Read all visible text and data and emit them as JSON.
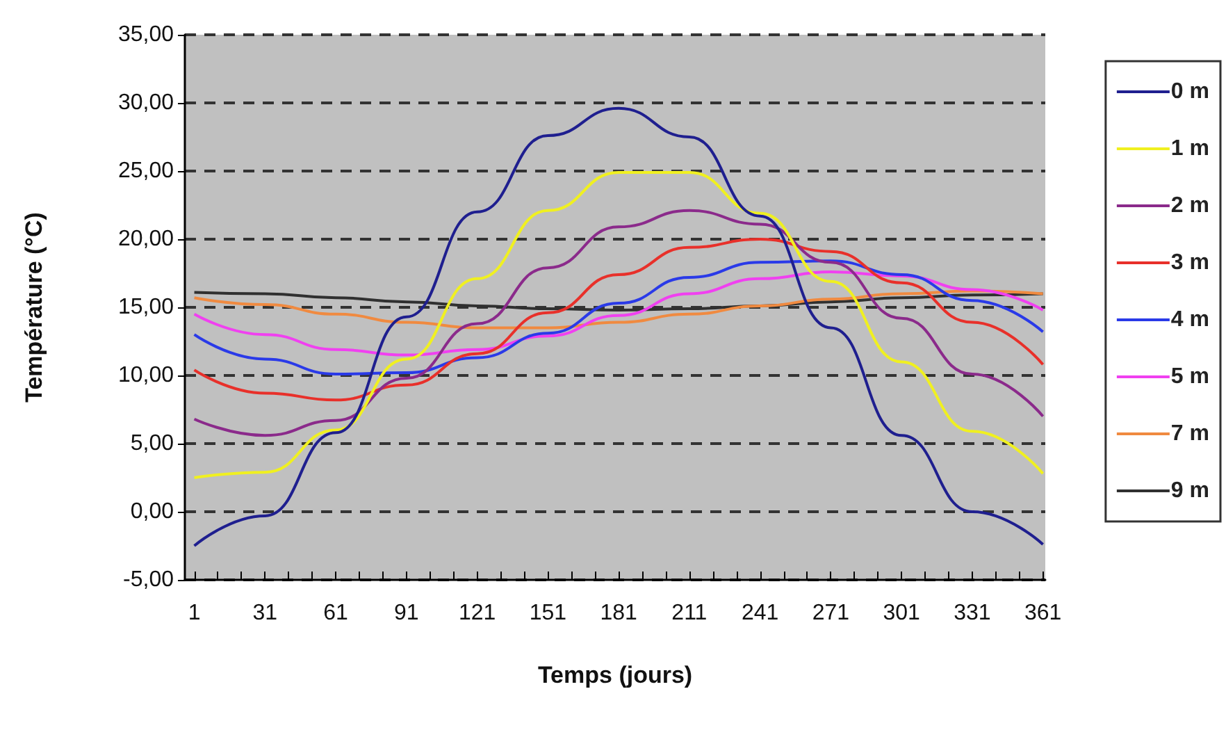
{
  "chart_data": {
    "type": "line",
    "xlabel": "Temps (jours)",
    "ylabel": "Température (°C)",
    "x": [
      1,
      31,
      61,
      91,
      121,
      151,
      181,
      211,
      241,
      271,
      301,
      331,
      361
    ],
    "series": [
      {
        "name": "0 m",
        "color": "#1f1f8f",
        "values": [
          -2.5,
          -0.3,
          5.8,
          14.3,
          22.0,
          27.6,
          29.6,
          27.5,
          21.7,
          13.5,
          5.6,
          0.0,
          -2.4
        ]
      },
      {
        "name": "1 m",
        "color": "#f0f020",
        "values": [
          2.5,
          2.9,
          6.0,
          11.2,
          17.1,
          22.1,
          24.9,
          24.9,
          21.9,
          16.9,
          11.0,
          5.9,
          2.8
        ]
      },
      {
        "name": "2 m",
        "color": "#8b2a8b",
        "values": [
          6.8,
          5.6,
          6.7,
          9.8,
          13.8,
          17.9,
          20.9,
          22.1,
          21.1,
          18.3,
          14.2,
          10.1,
          7.0
        ]
      },
      {
        "name": "3 m",
        "color": "#e8302a",
        "values": [
          10.4,
          8.7,
          8.2,
          9.3,
          11.6,
          14.6,
          17.4,
          19.4,
          20.0,
          19.1,
          16.8,
          13.9,
          10.8
        ]
      },
      {
        "name": "4 m",
        "color": "#2a3ae8",
        "values": [
          13.0,
          11.2,
          10.1,
          10.2,
          11.3,
          13.1,
          15.3,
          17.2,
          18.3,
          18.4,
          17.4,
          15.5,
          13.2
        ]
      },
      {
        "name": "5 m",
        "color": "#f040f0",
        "values": [
          14.5,
          13.0,
          11.9,
          11.5,
          11.9,
          12.9,
          14.4,
          16.0,
          17.1,
          17.6,
          17.3,
          16.3,
          14.8
        ]
      },
      {
        "name": "7 m",
        "color": "#f08a40",
        "values": [
          15.7,
          15.2,
          14.5,
          13.9,
          13.5,
          13.5,
          13.9,
          14.5,
          15.1,
          15.6,
          16.0,
          16.2,
          16.0
        ]
      },
      {
        "name": "9 m",
        "color": "#303030",
        "values": [
          16.1,
          16.0,
          15.7,
          15.4,
          15.1,
          14.9,
          14.8,
          14.9,
          15.1,
          15.4,
          15.7,
          15.9,
          16.0
        ]
      }
    ],
    "xlim": [
      -3,
      362
    ],
    "xticks": [
      1,
      {
        "value": 11,
        "label": null
      },
      {
        "value": 21,
        "label": null
      },
      31,
      {
        "value": 41,
        "label": null
      },
      {
        "value": 51,
        "label": null
      },
      61,
      {
        "value": 71,
        "label": null
      },
      {
        "value": 81,
        "label": null
      },
      91,
      {
        "value": 101,
        "label": null
      },
      {
        "value": 111,
        "label": null
      },
      121,
      {
        "value": 131,
        "label": null
      },
      {
        "value": 141,
        "label": null
      },
      151,
      {
        "value": 161,
        "label": null
      },
      {
        "value": 171,
        "label": null
      },
      181,
      {
        "value": 191,
        "label": null
      },
      {
        "value": 201,
        "label": null
      },
      211,
      {
        "value": 221,
        "label": null
      },
      {
        "value": 231,
        "label": null
      },
      241,
      {
        "value": 251,
        "label": null
      },
      {
        "value": 261,
        "label": null
      },
      271,
      {
        "value": 281,
        "label": null
      },
      {
        "value": 291,
        "label": null
      },
      301,
      {
        "value": 311,
        "label": null
      },
      {
        "value": 321,
        "label": null
      },
      331,
      {
        "value": 341,
        "label": null
      },
      {
        "value": 351,
        "label": null
      },
      361
    ],
    "ylim": [
      -5,
      35
    ],
    "yticks": [
      {
        "value": -5,
        "label": "-5,00"
      },
      {
        "value": 0,
        "label": "0,00"
      },
      {
        "value": 5,
        "label": "5,00"
      },
      {
        "value": 10,
        "label": "10,00"
      },
      {
        "value": 15,
        "label": "15,00"
      },
      {
        "value": 20,
        "label": "20,00"
      },
      {
        "value": 25,
        "label": "25,00"
      },
      {
        "value": 30,
        "label": "30,00"
      },
      {
        "value": 35,
        "label": "35,00"
      }
    ],
    "grid": "y",
    "legend": "right",
    "marker": "none",
    "line_style": "solid"
  }
}
